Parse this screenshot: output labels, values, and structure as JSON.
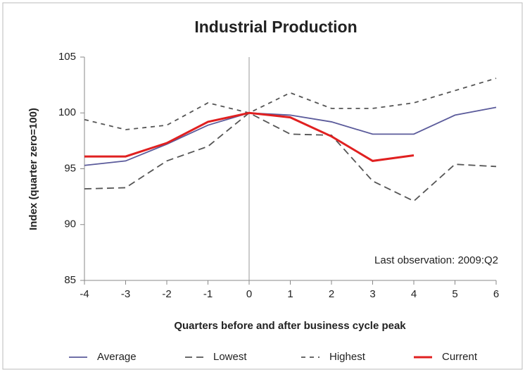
{
  "chart_data": {
    "type": "line",
    "title": "Industrial Production",
    "xlabel": "Quarters before and after business cycle peak",
    "ylabel": "Index (quarter zero=100)",
    "annotation": "Last observation: 2009:Q2",
    "x": [
      -4,
      -3,
      -2,
      -1,
      0,
      1,
      2,
      3,
      4,
      5,
      6
    ],
    "xlim": [
      -4,
      6
    ],
    "xticks": [
      -4,
      -3,
      -2,
      -1,
      0,
      1,
      2,
      3,
      4,
      5,
      6
    ],
    "ylim": [
      85,
      105
    ],
    "yticks": [
      85,
      90,
      95,
      100,
      105
    ],
    "vline": 0,
    "series": [
      {
        "name": "Average",
        "color": "#5b5b9b",
        "dash": "solid",
        "values": [
          95.3,
          95.7,
          97.2,
          98.9,
          100,
          99.8,
          99.2,
          98.1,
          98.1,
          99.8,
          100.5
        ]
      },
      {
        "name": "Lowest",
        "color": "#555555",
        "dash": "long",
        "values": [
          93.2,
          93.3,
          95.7,
          97.0,
          100,
          98.1,
          98.0,
          93.9,
          92.1,
          95.4,
          95.2
        ]
      },
      {
        "name": "Highest",
        "color": "#555555",
        "dash": "short",
        "values": [
          99.4,
          98.5,
          98.9,
          100.9,
          100,
          101.8,
          100.4,
          100.4,
          100.9,
          102.0,
          103.1
        ]
      },
      {
        "name": "Current",
        "color": "#e02020",
        "dash": "solid",
        "values": [
          96.1,
          96.1,
          97.3,
          99.2,
          100,
          99.6,
          97.9,
          95.7,
          96.2,
          null,
          null
        ]
      }
    ]
  }
}
